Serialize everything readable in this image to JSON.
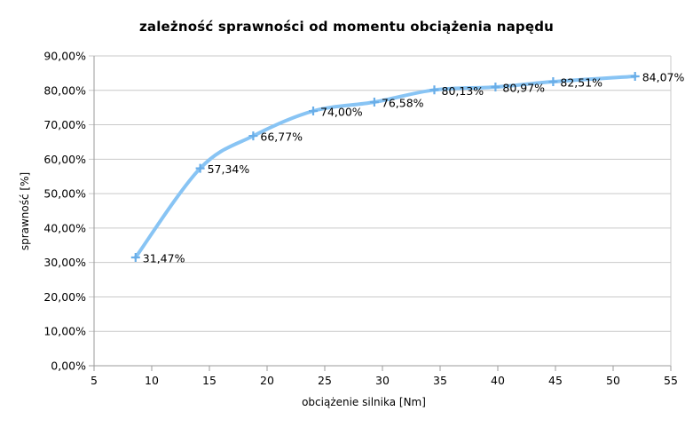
{
  "chart_data": {
    "type": "line",
    "title": "zależność sprawności od momentu obciążenia napędu",
    "xlabel": "obciążenie silnika [Nm]",
    "ylabel": "sprawność [%]",
    "x": [
      8.6,
      14.2,
      18.8,
      24.0,
      29.3,
      34.5,
      39.8,
      44.8,
      51.9
    ],
    "values": [
      31.47,
      57.34,
      66.77,
      74.0,
      76.58,
      80.13,
      80.97,
      82.51,
      84.07
    ],
    "point_labels": [
      "31,47%",
      "57,34%",
      "66,77%",
      "74,00%",
      "76,58%",
      "80,13%",
      "80,97%",
      "82,51%",
      "84,07%"
    ],
    "xlim": [
      5,
      55
    ],
    "ylim": [
      0,
      90
    ],
    "x_ticks": [
      5,
      10,
      15,
      20,
      25,
      30,
      35,
      40,
      45,
      50,
      55
    ],
    "x_tick_labels": [
      "5",
      "10",
      "15",
      "20",
      "25",
      "30",
      "35",
      "40",
      "45",
      "50",
      "55"
    ],
    "y_ticks": [
      0,
      10,
      20,
      30,
      40,
      50,
      60,
      70,
      80,
      90
    ],
    "y_tick_labels": [
      "0,00%",
      "10,00%",
      "20,00%",
      "30,00%",
      "40,00%",
      "50,00%",
      "60,00%",
      "70,00%",
      "80,00%",
      "90,00%"
    ],
    "grid": "horizontal",
    "legend": "none",
    "marker": "plus",
    "colors": {
      "line": "#88C4F4",
      "marker": "#6AAEE8",
      "grid": "#C9C9C9",
      "axis": "#9B9B9B",
      "text": "#000000",
      "background": "#FFFFFF"
    }
  }
}
